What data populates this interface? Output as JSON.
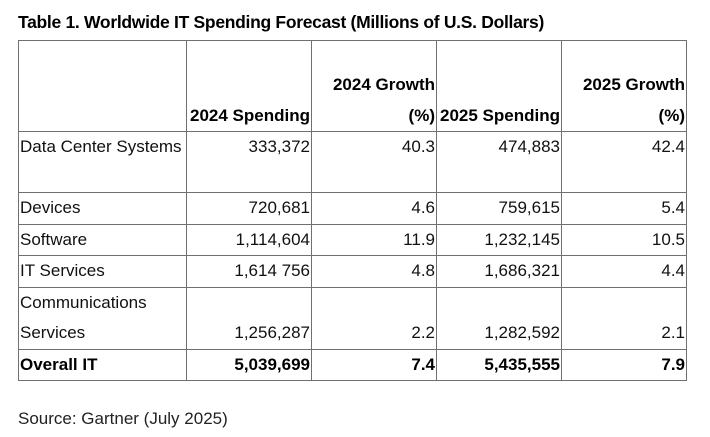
{
  "title": "Table 1. Worldwide IT Spending Forecast (Millions of U.S. Dollars)",
  "table": {
    "headers": [
      "",
      "2024 Spending",
      "2024 Growth (%)",
      "2025 Spending",
      "2025 Growth (%)"
    ],
    "rows": [
      {
        "segment": "Data Center Systems",
        "spending_2024": "333,372",
        "growth_2024": "40.3",
        "spending_2025": "474,883",
        "growth_2025": "42.4"
      },
      {
        "segment": "Devices",
        "spending_2024": "720,681",
        "growth_2024": "4.6",
        "spending_2025": "759,615",
        "growth_2025": "5.4"
      },
      {
        "segment": "Software",
        "spending_2024": "1,114,604",
        "growth_2024": "11.9",
        "spending_2025": "1,232,145",
        "growth_2025": "10.5"
      },
      {
        "segment": "IT Services",
        "spending_2024": "1,614 756",
        "growth_2024": "4.8",
        "spending_2025": "1,686,321",
        "growth_2025": "4.4"
      },
      {
        "segment": "Communications Services",
        "spending_2024": "1,256,287",
        "growth_2024": "2.2",
        "spending_2025": "1,282,592",
        "growth_2025": "2.1"
      }
    ],
    "total": {
      "segment": "Overall IT",
      "spending_2024": "5,039,699",
      "growth_2024": "7.4",
      "spending_2025": "5,435,555",
      "growth_2025": "7.9"
    }
  },
  "source": "Source: Gartner (July 2025)"
}
